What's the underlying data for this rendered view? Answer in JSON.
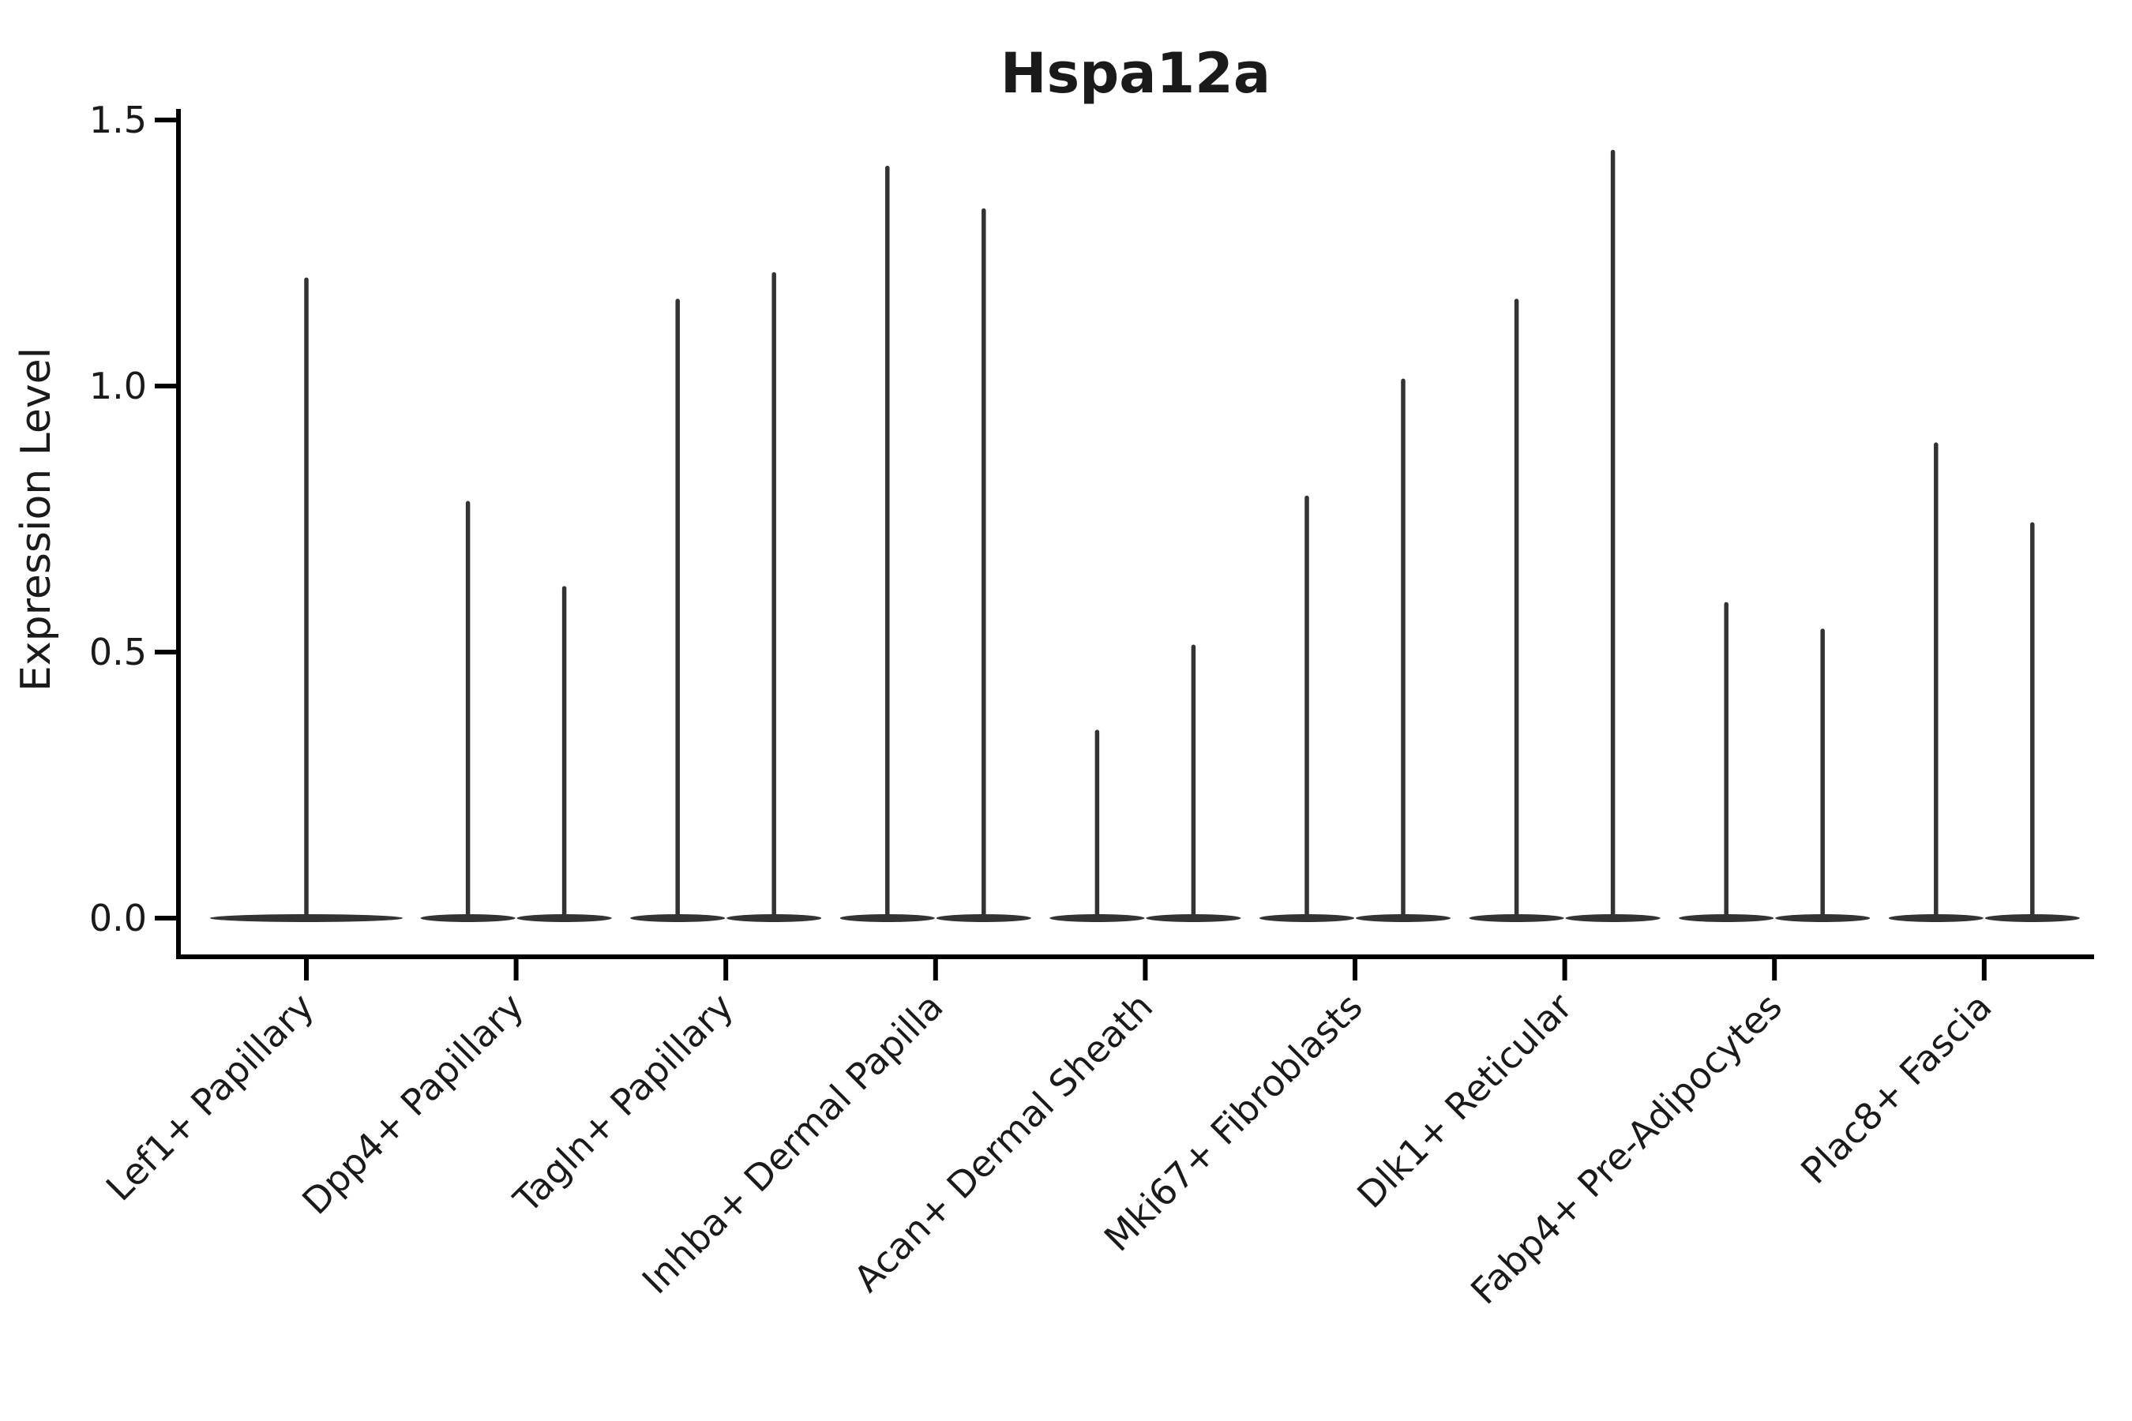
{
  "figure": {
    "title": "Hspa12a",
    "y_axis_label": "Expression Level"
  },
  "chart_data": {
    "type": "violin",
    "title": "Hspa12a",
    "xlabel": "",
    "ylabel": "Expression Level",
    "ylim": [
      0,
      1.5
    ],
    "grid": false,
    "legend_position": "none",
    "baseline_value": 0.0,
    "yticks": [
      {
        "value": 0.0,
        "label": "0.0"
      },
      {
        "value": 0.5,
        "label": "0.5"
      },
      {
        "value": 1.0,
        "label": "1.0"
      },
      {
        "value": 1.5,
        "label": "1.5"
      }
    ],
    "categories": [
      "Lef1+ Papillary",
      "Dpp4+ Papillary",
      "Tagln+ Papillary",
      "Inhba+ Dermal Papilla",
      "Acan+ Dermal Sheath",
      "Mki67+ Fibroblasts",
      "Dlk1+ Reticular",
      "Fabp4+ Pre-Adipocytes",
      "Plac8+ Fascia"
    ],
    "violins": [
      {
        "category": "Lef1+ Papillary",
        "layout": "single-wide",
        "spike_maxima": [
          1.2
        ]
      },
      {
        "category": "Dpp4+ Papillary",
        "layout": "pair",
        "spike_maxima": [
          0.78,
          0.62
        ]
      },
      {
        "category": "Tagln+ Papillary",
        "layout": "pair",
        "spike_maxima": [
          1.16,
          1.21
        ]
      },
      {
        "category": "Inhba+ Dermal Papilla",
        "layout": "pair",
        "spike_maxima": [
          1.41,
          1.33
        ]
      },
      {
        "category": "Acan+ Dermal Sheath",
        "layout": "pair",
        "spike_maxima": [
          0.35,
          0.51
        ]
      },
      {
        "category": "Mki67+ Fibroblasts",
        "layout": "pair",
        "spike_maxima": [
          0.79,
          1.01
        ]
      },
      {
        "category": "Dlk1+ Reticular",
        "layout": "pair",
        "spike_maxima": [
          1.16,
          1.44
        ]
      },
      {
        "category": "Fabp4+ Pre-Adipocytes",
        "layout": "pair",
        "spike_maxima": [
          0.59,
          0.54
        ]
      },
      {
        "category": "Plac8+ Fascia",
        "layout": "pair",
        "spike_maxima": [
          0.89,
          0.74
        ]
      }
    ],
    "colors": {
      "violin": "#333333",
      "axis": "#000000",
      "text": "#1a1a1a",
      "background": "#ffffff"
    }
  }
}
